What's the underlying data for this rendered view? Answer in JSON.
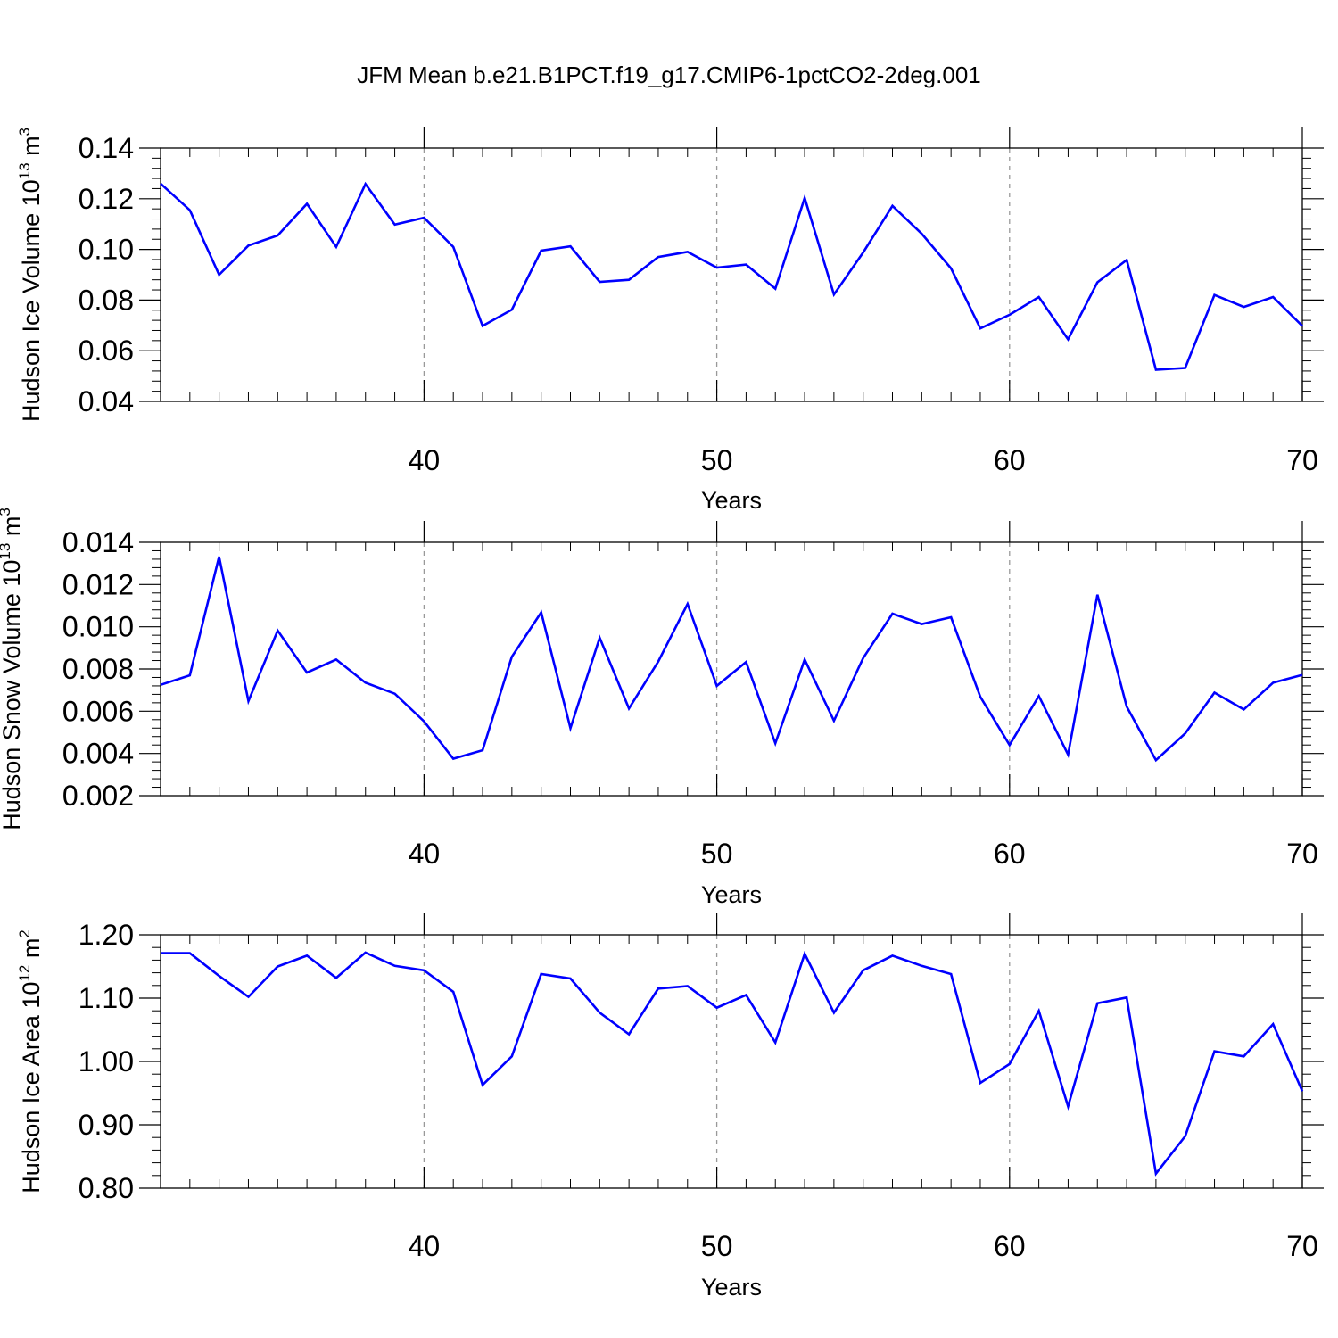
{
  "title": "JFM Mean b.e21.B1PCT.f19_g17.CMIP6-1pctCO2-2deg.001",
  "colors": {
    "line": "#0000ff",
    "grid": "#999999"
  },
  "chart_data": [
    {
      "type": "line",
      "ylabel": "Hudson Ice Volume 10",
      "ylabel_exp": "13",
      "ylabel_unit": " m",
      "ylabel_unit_exp": "3",
      "xlabel": "Years",
      "xlim": [
        31,
        70
      ],
      "ylim": [
        0.04,
        0.14
      ],
      "xticks": [
        40,
        50,
        60,
        70
      ],
      "xtick_labels": [
        "40",
        "50",
        "60",
        "70"
      ],
      "yticks": [
        0.04,
        0.06,
        0.08,
        0.1,
        0.12,
        0.14
      ],
      "ytick_labels": [
        "0.04",
        "0.06",
        "0.08",
        "0.10",
        "0.12",
        "0.14"
      ],
      "grid": "vertical-dashed",
      "x": [
        31,
        32,
        33,
        34,
        35,
        36,
        37,
        38,
        39,
        40,
        41,
        42,
        43,
        44,
        45,
        46,
        47,
        48,
        49,
        50,
        51,
        52,
        53,
        54,
        55,
        56,
        57,
        58,
        59,
        60,
        61,
        62,
        63,
        64,
        65,
        66,
        67,
        68,
        69,
        70
      ],
      "values": [
        0.126,
        0.1155,
        0.09,
        0.1015,
        0.1055,
        0.118,
        0.101,
        0.1258,
        0.1098,
        0.1125,
        0.101,
        0.0698,
        0.0762,
        0.0995,
        0.1012,
        0.0872,
        0.088,
        0.097,
        0.099,
        0.0928,
        0.094,
        0.0845,
        0.1203,
        0.0822,
        0.0988,
        0.1172,
        0.1062,
        0.0925,
        0.0688,
        0.0742,
        0.0812,
        0.0645,
        0.087,
        0.0958,
        0.0525,
        0.0532,
        0.082,
        0.0773,
        0.0812,
        0.0698
      ]
    },
    {
      "type": "line",
      "ylabel": "Hudson Snow Volume 10",
      "ylabel_exp": "13",
      "ylabel_unit": " m",
      "ylabel_unit_exp": "3",
      "xlabel": "Years",
      "xlim": [
        31,
        70
      ],
      "ylim": [
        0.002,
        0.014
      ],
      "xticks": [
        40,
        50,
        60,
        70
      ],
      "xtick_labels": [
        "40",
        "50",
        "60",
        "70"
      ],
      "yticks": [
        0.002,
        0.004,
        0.006,
        0.008,
        0.01,
        0.012,
        0.014
      ],
      "ytick_labels": [
        "0.002",
        "0.004",
        "0.006",
        "0.008",
        "0.010",
        "0.012",
        "0.014"
      ],
      "grid": "vertical-dashed",
      "x": [
        31,
        32,
        33,
        34,
        35,
        36,
        37,
        38,
        39,
        40,
        41,
        42,
        43,
        44,
        45,
        46,
        47,
        48,
        49,
        50,
        51,
        52,
        53,
        54,
        55,
        56,
        57,
        58,
        59,
        60,
        61,
        62,
        63,
        64,
        65,
        66,
        67,
        68,
        69,
        70
      ],
      "values": [
        0.00725,
        0.0077,
        0.01332,
        0.00648,
        0.00982,
        0.00783,
        0.00845,
        0.00735,
        0.00683,
        0.00552,
        0.00375,
        0.00415,
        0.00858,
        0.01068,
        0.0052,
        0.00948,
        0.00613,
        0.00835,
        0.01108,
        0.0072,
        0.00833,
        0.00448,
        0.00845,
        0.00555,
        0.00852,
        0.01062,
        0.01013,
        0.01045,
        0.00668,
        0.0044,
        0.00672,
        0.00395,
        0.01152,
        0.00622,
        0.00368,
        0.00495,
        0.00688,
        0.00608,
        0.00735,
        0.00772
      ]
    },
    {
      "type": "line",
      "ylabel": "Hudson Ice Area 10",
      "ylabel_exp": "12",
      "ylabel_unit": " m",
      "ylabel_unit_exp": "2",
      "xlabel": "Years",
      "xlim": [
        31,
        70
      ],
      "ylim": [
        0.8,
        1.2
      ],
      "xticks": [
        40,
        50,
        60,
        70
      ],
      "xtick_labels": [
        "40",
        "50",
        "60",
        "70"
      ],
      "yticks": [
        0.8,
        0.9,
        1.0,
        1.1,
        1.2
      ],
      "ytick_labels": [
        "0.80",
        "0.90",
        "1.00",
        "1.10",
        "1.20"
      ],
      "grid": "vertical-dashed",
      "x": [
        31,
        32,
        33,
        34,
        35,
        36,
        37,
        38,
        39,
        40,
        41,
        42,
        43,
        44,
        45,
        46,
        47,
        48,
        49,
        50,
        51,
        52,
        53,
        54,
        55,
        56,
        57,
        58,
        59,
        60,
        61,
        62,
        63,
        64,
        65,
        66,
        67,
        68,
        69,
        70
      ],
      "values": [
        1.171,
        1.171,
        1.135,
        1.102,
        1.15,
        1.167,
        1.132,
        1.172,
        1.151,
        1.144,
        1.11,
        0.963,
        1.008,
        1.138,
        1.131,
        1.077,
        1.043,
        1.115,
        1.119,
        1.085,
        1.105,
        1.03,
        1.17,
        1.077,
        1.144,
        1.167,
        1.151,
        1.138,
        0.966,
        0.996,
        1.08,
        0.929,
        1.092,
        1.101,
        0.823,
        0.882,
        1.016,
        1.008,
        1.059,
        0.953
      ]
    }
  ]
}
